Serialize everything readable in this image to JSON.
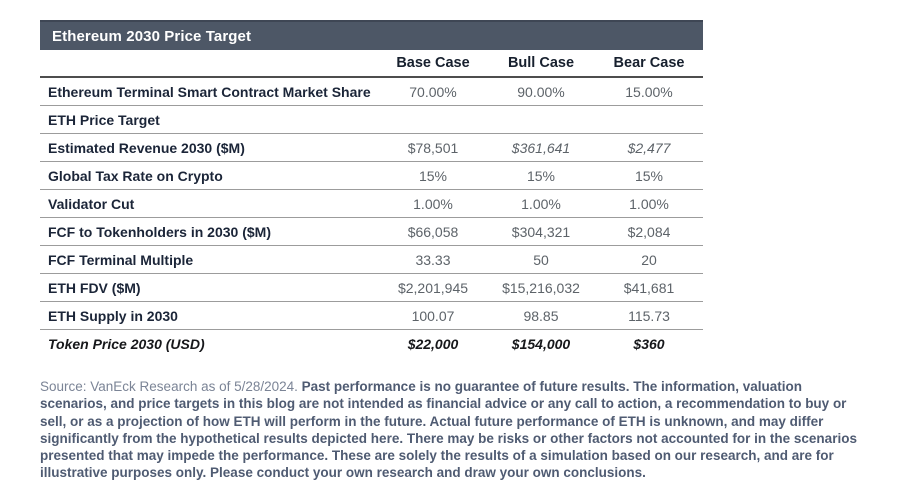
{
  "title": "Ethereum 2030 Price Target",
  "chart_data": {
    "type": "table",
    "title": "Ethereum 2030 Price Target",
    "columns": [
      "Base Case",
      "Bull Case",
      "Bear Case"
    ],
    "rows": [
      {
        "label": "Ethereum Terminal Smart Contract Market Share",
        "values": [
          "70.00%",
          "90.00%",
          "15.00%"
        ]
      },
      {
        "label": "ETH Price Target",
        "values": [
          "",
          "",
          ""
        ]
      },
      {
        "label": "Estimated Revenue 2030 ($M)",
        "values": [
          "$78,501",
          "$361,641",
          "$2,477"
        ]
      },
      {
        "label": "Global Tax Rate on Crypto",
        "values": [
          "15%",
          "15%",
          "15%"
        ]
      },
      {
        "label": "Validator Cut",
        "values": [
          "1.00%",
          "1.00%",
          "1.00%"
        ]
      },
      {
        "label": "FCF to Tokenholders in 2030 ($M)",
        "values": [
          "$66,058",
          "$304,321",
          "$2,084"
        ]
      },
      {
        "label": "FCF Terminal Multiple",
        "values": [
          "33.33",
          "50",
          "20"
        ]
      },
      {
        "label": "ETH FDV ($M)",
        "values": [
          "$2,201,945",
          "$15,216,032",
          "$41,681"
        ]
      },
      {
        "label": "ETH Supply in 2030",
        "values": [
          "100.07",
          "98.85",
          "115.73"
        ]
      },
      {
        "label": "Token Price 2030 (USD)",
        "values": [
          "$22,000",
          "$154,000",
          "$360"
        ]
      }
    ]
  },
  "footer": {
    "source": "Source: VanEck Research as of 5/28/2024. ",
    "disclaimer": "Past performance is no guarantee of future results. The information, valuation scenarios, and price targets in this blog are not intended as financial advice or any call to action, a recommendation to buy or sell, or as a projection of how ETH will perform in the future. Actual future performance of ETH is unknown, and may differ significantly from the hypothetical results depicted here. There may be risks or other factors not accounted for in the scenarios presented that may impede the performance. These are solely the results of a simulation based on our research, and are for illustrative purposes only. Please conduct your own research and draw your own conclusions."
  },
  "colors": {
    "header_bar_bg": "#4d5766",
    "header_bar_text": "#ffffff",
    "row_label_text": "#1b2538",
    "value_text": "#5d6369",
    "total_row_text": "#17181b",
    "footer_source_text": "#7b8496",
    "footer_disclaimer_text": "#4f5b72"
  }
}
